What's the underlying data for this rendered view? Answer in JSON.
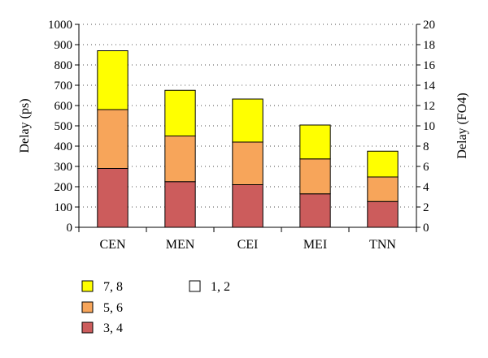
{
  "chart_data": {
    "type": "bar",
    "stacked": true,
    "categories": [
      "CEN",
      "MEN",
      "CEI",
      "MEI",
      "TNN"
    ],
    "series": [
      {
        "name": "3, 4",
        "color": "#cc5c5c",
        "values": [
          290,
          225,
          210,
          165,
          127
        ]
      },
      {
        "name": "5, 6",
        "color": "#f7a55a",
        "values": [
          290,
          225,
          210,
          172,
          121
        ]
      },
      {
        "name": "7, 8",
        "color": "#ffff00",
        "values": [
          290,
          225,
          212,
          167,
          127
        ]
      },
      {
        "name": "1, 2",
        "color": "#ffffff",
        "values": [
          0,
          0,
          0,
          0,
          0
        ]
      }
    ],
    "ylabel": "Delay (ps)",
    "ylim": [
      0,
      1000
    ],
    "yticks": [
      "0",
      "100",
      "200",
      "300",
      "400",
      "500",
      "600",
      "700",
      "800",
      "900",
      "1000"
    ],
    "y2label": "Delay (FO4)",
    "y2lim": [
      0,
      20
    ],
    "y2ticks": [
      "0",
      "2",
      "4",
      "6",
      "8",
      "10",
      "12",
      "14",
      "16",
      "18",
      "20"
    ],
    "grid": "dotted horizontal",
    "legend": "bottom-left"
  }
}
